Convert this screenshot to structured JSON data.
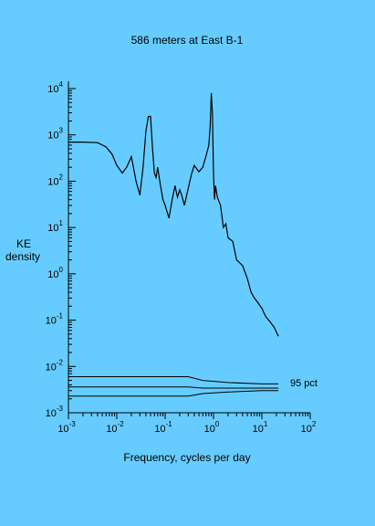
{
  "colors": {
    "background": "#66ccff",
    "ink": "#000000"
  },
  "chart_data": {
    "type": "line",
    "title": "586 meters at East B-1",
    "xlabel": "Frequency, cycles per day",
    "ylabel_lines": [
      "KE",
      "density"
    ],
    "x_scale": "log",
    "y_scale": "log",
    "xlim": [
      0.001,
      100
    ],
    "ylim": [
      0.001,
      10000
    ],
    "x_ticks": [
      {
        "base": "10",
        "exp": "-3",
        "value": 0.001
      },
      {
        "base": "10",
        "exp": "-2",
        "value": 0.01
      },
      {
        "base": "10",
        "exp": "-1",
        "value": 0.1
      },
      {
        "base": "10",
        "exp": "0",
        "value": 1
      },
      {
        "base": "10",
        "exp": "1",
        "value": 10
      },
      {
        "base": "10",
        "exp": "2",
        "value": 100
      }
    ],
    "y_ticks": [
      {
        "base": "10",
        "exp": "4",
        "value": 10000
      },
      {
        "base": "10",
        "exp": "3",
        "value": 1000
      },
      {
        "base": "10",
        "exp": "2",
        "value": 100
      },
      {
        "base": "10",
        "exp": "1",
        "value": 10
      },
      {
        "base": "10",
        "exp": "0",
        "value": 1
      },
      {
        "base": "10",
        "exp": "-1",
        "value": 0.1
      },
      {
        "base": "10",
        "exp": "-2",
        "value": 0.01
      },
      {
        "base": "10",
        "exp": "-3",
        "value": 0.001
      }
    ],
    "spectrum": {
      "x": [
        0.001,
        0.002,
        0.004,
        0.006,
        0.008,
        0.01,
        0.013,
        0.016,
        0.02,
        0.025,
        0.03,
        0.035,
        0.04,
        0.045,
        0.05,
        0.055,
        0.06,
        0.065,
        0.07,
        0.08,
        0.09,
        0.1,
        0.12,
        0.14,
        0.16,
        0.18,
        0.2,
        0.22,
        0.25,
        0.3,
        0.35,
        0.4,
        0.5,
        0.6,
        0.7,
        0.8,
        0.85,
        0.9,
        0.95,
        1.0,
        1.05,
        1.1,
        1.2,
        1.4,
        1.6,
        1.8,
        2.0,
        2.5,
        3.0,
        4.0,
        5.0,
        6.0,
        7.0,
        8.0,
        10.0,
        12.0,
        15.0,
        18.0,
        20.0,
        22.0
      ],
      "y": [
        700,
        700,
        680,
        550,
        380,
        220,
        150,
        200,
        340,
        100,
        50,
        200,
        1200,
        2500,
        2500,
        500,
        150,
        120,
        200,
        80,
        40,
        30,
        16,
        40,
        80,
        45,
        65,
        50,
        30,
        70,
        140,
        220,
        160,
        200,
        350,
        600,
        1500,
        8000,
        3000,
        150,
        40,
        80,
        45,
        30,
        10,
        12,
        6,
        5,
        2,
        1.5,
        0.8,
        0.4,
        0.3,
        0.25,
        0.18,
        0.12,
        0.09,
        0.07,
        0.055,
        0.045
      ]
    },
    "confidence": {
      "label": "95 pct",
      "upper": [
        0.006,
        0.006,
        0.006,
        0.005,
        0.0045,
        0.0042,
        0.0042
      ],
      "middle": [
        0.0036,
        0.0036,
        0.0036,
        0.0034,
        0.0034,
        0.0034,
        0.0034
      ],
      "lower": [
        0.0023,
        0.0023,
        0.0023,
        0.0026,
        0.0028,
        0.003,
        0.003
      ],
      "x": [
        0.001,
        0.01,
        0.3,
        0.6,
        2,
        10,
        22
      ]
    }
  }
}
